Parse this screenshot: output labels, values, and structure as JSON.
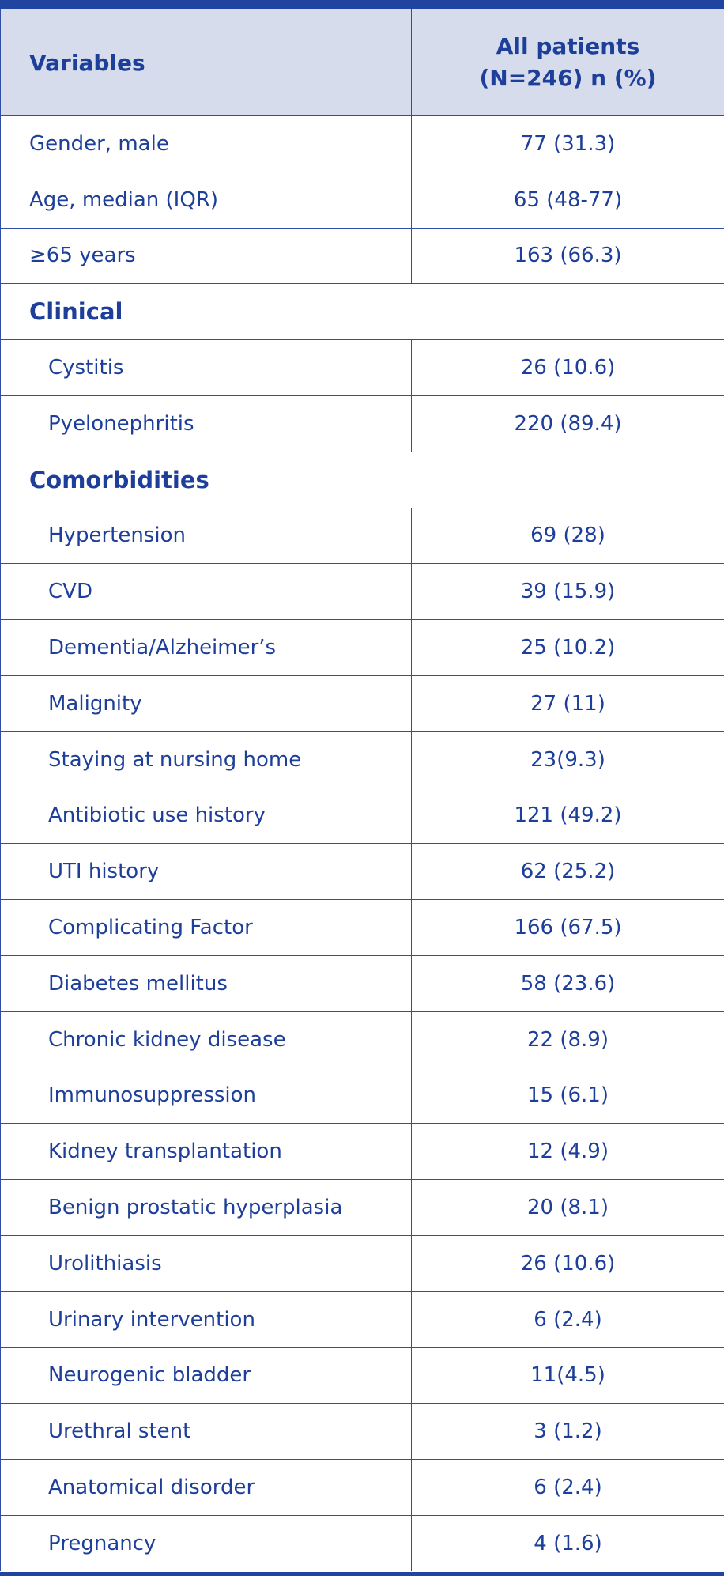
{
  "header": {
    "variables": "Variables",
    "all_patients_line1": "All patients",
    "all_patients_line2": "(N=246) n (%)"
  },
  "rows": [
    {
      "label": "Gender, male",
      "value": "77 (31.3)"
    },
    {
      "label": "Age, median (IQR)",
      "value": "65 (48-77)"
    },
    {
      "label": "≥65 years",
      "value": "163 (66.3)"
    }
  ],
  "clinical": {
    "title": "Clinical",
    "rows": [
      {
        "label": "Cystitis",
        "value": "26 (10.6)"
      },
      {
        "label": "Pyelonephritis",
        "value": "220 (89.4)"
      }
    ]
  },
  "comorbidities": {
    "title": "Comorbidities",
    "rows": [
      {
        "label": "Hypertension",
        "value": "69 (28)"
      },
      {
        "label": "CVD",
        "value": "39 (15.9)"
      },
      {
        "label": "Dementia/Alzheimer’s",
        "value": "25 (10.2)"
      },
      {
        "label": "Malignity",
        "value": "27 (11)"
      },
      {
        "label": "Staying at nursing home",
        "value": "23(9.3)"
      },
      {
        "label": "Antibiotic use history",
        "value": "121 (49.2)"
      },
      {
        "label": "UTI history",
        "value": "62 (25.2)"
      },
      {
        "label": "Complicating Factor",
        "value": "166 (67.5)"
      },
      {
        "label": "Diabetes mellitus",
        "value": "58 (23.6)"
      },
      {
        "label": "Chronic kidney disease",
        "value": "22 (8.9)"
      },
      {
        "label": "Immunosuppression",
        "value": "15 (6.1)"
      },
      {
        "label": "Kidney transplantation",
        "value": "12 (4.9)"
      },
      {
        "label": "Benign prostatic hyperplasia",
        "value": "20 (8.1)"
      },
      {
        "label": "Urolithiasis",
        "value": "26 (10.6)"
      },
      {
        "label": "Urinary intervention",
        "value": "6 (2.4)"
      },
      {
        "label": "Neurogenic bladder",
        "value": "11(4.5)"
      },
      {
        "label": "Urethral stent",
        "value": "3 (1.2)"
      },
      {
        "label": "Anatomical disorder",
        "value": "6 (2.4)"
      },
      {
        "label": "Pregnancy",
        "value": "4 (1.6)"
      }
    ]
  },
  "colors": {
    "text": "#1d3f99",
    "border": "#2d4fa6",
    "header_bg": "#d6dceb",
    "top_bar": "#1f45a1"
  }
}
